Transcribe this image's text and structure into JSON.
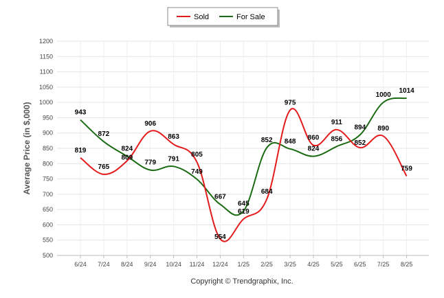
{
  "chart_data": {
    "type": "line",
    "categories": [
      "6/24",
      "7/24",
      "8/24",
      "9/24",
      "10/24",
      "11/24",
      "12/24",
      "1/25",
      "2/25",
      "3/25",
      "4/25",
      "5/25",
      "6/25",
      "7/25",
      "8/25"
    ],
    "series": [
      {
        "name": "Sold",
        "color": "#e31a1c",
        "values": [
          819,
          765,
          809,
          906,
          863,
          805,
          554,
          619,
          684,
          975,
          860,
          911,
          852,
          890,
          759
        ]
      },
      {
        "name": "For Sale",
        "color": "#1a6b12",
        "values": [
          943,
          872,
          824,
          779,
          791,
          749,
          667,
          645,
          852,
          848,
          824,
          856,
          894,
          1000,
          1014
        ]
      }
    ],
    "ylabel": "Average Price (in $,000)",
    "xlabel": "",
    "ylim": [
      500,
      1200
    ],
    "yticks": [
      500,
      550,
      600,
      650,
      700,
      750,
      800,
      850,
      900,
      950,
      1000,
      1050,
      1100,
      1150,
      1200
    ],
    "grid": true,
    "legend_position": "top-center",
    "footer": "Copyright © Trendgraphix, Inc."
  }
}
